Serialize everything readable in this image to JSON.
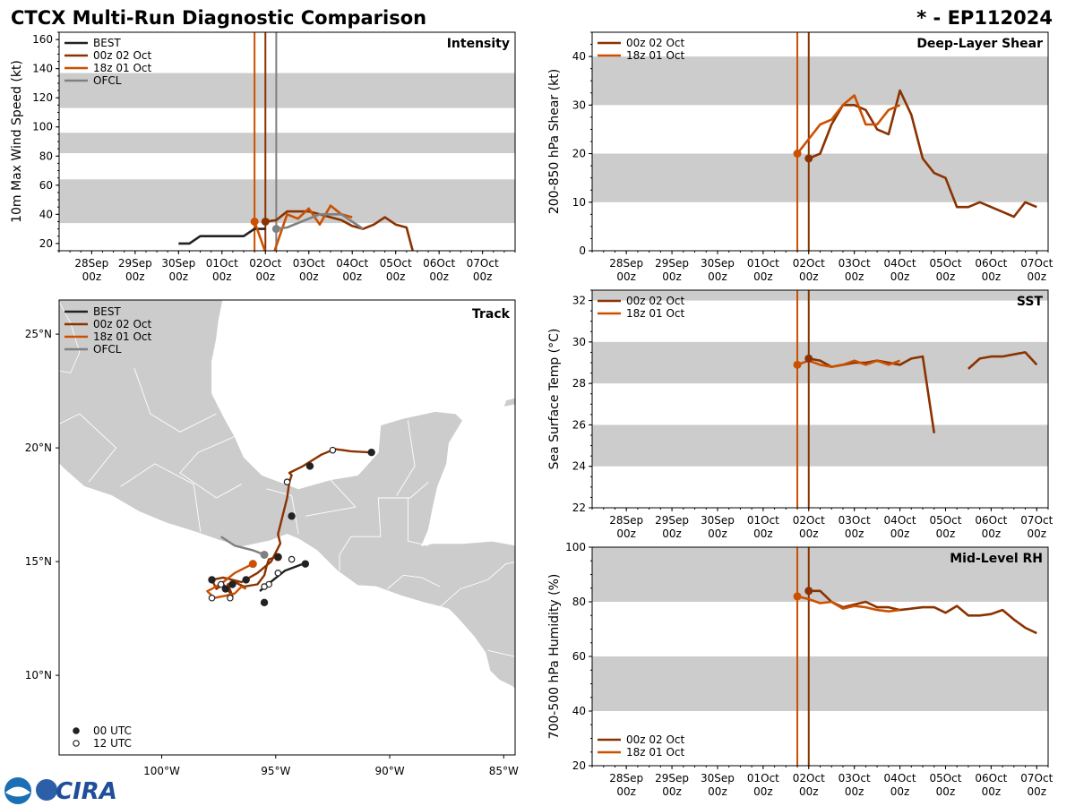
{
  "header": {
    "title": "CTCX Multi-Run Diagnostic Comparison",
    "storm_id": "* - EP112024"
  },
  "colors": {
    "BEST": "#222222",
    "00z 02 Oct": "#8b3200",
    "18z 01 Oct": "#cc5000",
    "OFCL": "#808080",
    "band": "#cccccc"
  },
  "time_ticks": {
    "line1": [
      "28Sep",
      "29Sep",
      "30Sep",
      "01Oct",
      "02Oct",
      "03Oct",
      "04Oct",
      "05Oct",
      "06Oct",
      "07Oct"
    ],
    "line2": [
      "00z",
      "00z",
      "00z",
      "00z",
      "00z",
      "00z",
      "00z",
      "00z",
      "00z",
      "00z"
    ]
  },
  "chart_data": [
    {
      "type": "line",
      "title": "Intensity",
      "ylabel": "10m Max Wind Speed (kt)",
      "xlabel": "",
      "x_unit": "days since 28Sep 00z",
      "xlim": [
        -0.75,
        9.75
      ],
      "ylim": [
        15,
        165
      ],
      "yticks": [
        20,
        40,
        60,
        80,
        100,
        120,
        140,
        160
      ],
      "bands": [
        [
          34,
          64
        ],
        [
          82,
          96
        ],
        [
          113,
          137
        ]
      ],
      "vlines": [
        {
          "x": 3.75,
          "series": "18z 01 Oct"
        },
        {
          "x": 4.0,
          "series": "00z 02 Oct"
        },
        {
          "x": 4.25,
          "series": "OFCL"
        }
      ],
      "legend": [
        "BEST",
        "00z 02 Oct",
        "18z 01 Oct",
        "OFCL"
      ],
      "series": [
        {
          "name": "BEST",
          "x": [
            2.0,
            2.25,
            2.5,
            2.75,
            3.0,
            3.25,
            3.5,
            3.75,
            4.0
          ],
          "y": [
            20,
            20,
            25,
            25,
            25,
            25,
            25,
            30,
            30
          ]
        },
        {
          "name": "00z 02 Oct",
          "x": [
            4.0,
            4.25,
            4.5,
            4.75,
            5.0,
            5.25,
            5.5,
            5.75,
            6.0,
            6.25,
            6.5,
            6.75,
            7.0,
            7.25,
            7.4
          ],
          "y": [
            35,
            36,
            42,
            42,
            42,
            40,
            38,
            36,
            32,
            30,
            33,
            38,
            33,
            31,
            14
          ]
        },
        {
          "name": "18z 01 Oct",
          "x": [
            3.75,
            4.0,
            4.2,
            4.5,
            4.75,
            5.0,
            5.25,
            5.5,
            5.75,
            6.0
          ],
          "y": [
            35,
            14,
            14,
            40,
            37,
            44,
            33,
            46,
            40,
            38
          ]
        },
        {
          "name": "OFCL",
          "x": [
            4.25,
            4.5,
            4.75,
            5.0,
            5.25,
            5.5,
            5.75,
            6.0,
            6.25
          ],
          "y": [
            30,
            31,
            34,
            37,
            40,
            40,
            40,
            35,
            30
          ]
        }
      ],
      "markers": [
        {
          "series": "00z 02 Oct",
          "x": 4.0,
          "y": 35
        },
        {
          "series": "18z 01 Oct",
          "x": 3.75,
          "y": 35
        },
        {
          "series": "OFCL",
          "x": 4.25,
          "y": 30
        }
      ]
    },
    {
      "type": "line",
      "title": "Deep-Layer Shear",
      "ylabel": "200-850 hPa Shear (kt)",
      "xlabel": "",
      "x_unit": "days since 28Sep 00z",
      "xlim": [
        -0.75,
        9.25
      ],
      "ylim": [
        0,
        45
      ],
      "yticks": [
        0,
        10,
        20,
        30,
        40
      ],
      "bands": [
        [
          10,
          20
        ],
        [
          30,
          40
        ]
      ],
      "vlines": [
        {
          "x": 3.75,
          "series": "18z 01 Oct"
        },
        {
          "x": 4.0,
          "series": "00z 02 Oct"
        }
      ],
      "legend": [
        "00z 02 Oct",
        "18z 01 Oct"
      ],
      "series": [
        {
          "name": "00z 02 Oct",
          "x": [
            4.0,
            4.25,
            4.5,
            4.75,
            5.0,
            5.25,
            5.5,
            5.75,
            6.0,
            6.25,
            6.5,
            6.75,
            7.0,
            7.25,
            7.5,
            7.75,
            8.0,
            8.25,
            8.5,
            8.75,
            9.0
          ],
          "y": [
            19,
            20,
            26,
            30,
            30,
            29,
            25,
            24,
            33,
            28,
            19,
            16,
            15,
            9,
            9,
            10,
            9,
            8,
            7,
            10,
            9
          ]
        },
        {
          "name": "18z 01 Oct",
          "x": [
            3.75,
            4.0,
            4.25,
            4.5,
            4.75,
            5.0,
            5.25,
            5.5,
            5.75,
            6.0
          ],
          "y": [
            20,
            23,
            26,
            27,
            30,
            32,
            26,
            26,
            29,
            30
          ]
        }
      ],
      "markers": [
        {
          "series": "00z 02 Oct",
          "x": 4.0,
          "y": 19
        },
        {
          "series": "18z 01 Oct",
          "x": 3.75,
          "y": 20
        }
      ]
    },
    {
      "type": "line",
      "title": "SST",
      "ylabel": "Sea Surface Temp (°C)",
      "xlabel": "",
      "x_unit": "days since 28Sep 00z",
      "xlim": [
        -0.75,
        9.25
      ],
      "ylim": [
        22,
        32.5
      ],
      "yticks": [
        22,
        24,
        26,
        28,
        30,
        32
      ],
      "bands": [
        [
          24,
          26
        ],
        [
          28,
          30
        ],
        [
          32,
          34
        ]
      ],
      "vlines": [
        {
          "x": 3.75,
          "series": "18z 01 Oct"
        },
        {
          "x": 4.0,
          "series": "00z 02 Oct"
        }
      ],
      "legend": [
        "00z 02 Oct",
        "18z 01 Oct"
      ],
      "series": [
        {
          "name": "00z 02 Oct",
          "x": [
            4.0,
            4.25,
            4.5,
            4.75,
            5.0,
            5.25,
            5.5,
            5.75,
            6.0,
            6.25,
            6.5,
            6.75
          ],
          "y": [
            29.2,
            29.1,
            28.8,
            28.9,
            29.0,
            29.0,
            29.1,
            29.0,
            28.9,
            29.2,
            29.3,
            25.6
          ]
        },
        {
          "name": "00z 02 Oct",
          "x": [
            7.5,
            7.75,
            8.0,
            8.25,
            8.5,
            8.75,
            9.0
          ],
          "y": [
            28.7,
            29.2,
            29.3,
            29.3,
            29.4,
            29.5,
            28.9
          ]
        },
        {
          "name": "18z 01 Oct",
          "x": [
            3.75,
            4.0,
            4.25,
            4.5,
            4.75,
            5.0,
            5.25,
            5.5,
            5.75,
            6.0
          ],
          "y": [
            28.9,
            29.1,
            28.9,
            28.8,
            28.9,
            29.1,
            28.9,
            29.1,
            28.9,
            29.1
          ]
        }
      ],
      "markers": [
        {
          "series": "00z 02 Oct",
          "x": 4.0,
          "y": 29.2
        },
        {
          "series": "18z 01 Oct",
          "x": 3.75,
          "y": 28.9
        }
      ]
    },
    {
      "type": "line",
      "title": "Mid-Level RH",
      "ylabel": "700-500 hPa Humidity (%)",
      "xlabel": "",
      "x_unit": "days since 28Sep 00z",
      "xlim": [
        -0.75,
        9.25
      ],
      "ylim": [
        20,
        100
      ],
      "yticks": [
        20,
        40,
        60,
        80,
        100
      ],
      "bands": [
        [
          40,
          60
        ],
        [
          80,
          100
        ]
      ],
      "vlines": [
        {
          "x": 3.75,
          "series": "18z 01 Oct"
        },
        {
          "x": 4.0,
          "series": "00z 02 Oct"
        }
      ],
      "legend": [
        "00z 02 Oct",
        "18z 01 Oct"
      ],
      "series": [
        {
          "name": "00z 02 Oct",
          "x": [
            4.0,
            4.25,
            4.5,
            4.75,
            5.0,
            5.25,
            5.5,
            5.75,
            6.0,
            6.25,
            6.5,
            6.75,
            7.0,
            7.25,
            7.5,
            7.75,
            8.0,
            8.25,
            8.5,
            8.75,
            9.0
          ],
          "y": [
            84,
            84,
            80,
            78,
            79,
            80,
            78,
            78,
            77,
            77.5,
            78,
            78,
            76,
            78.5,
            75,
            75,
            75.5,
            77,
            73.5,
            70.5,
            68.5
          ]
        },
        {
          "name": "18z 01 Oct",
          "x": [
            3.75,
            4.0,
            4.25,
            4.5,
            4.75,
            5.0,
            5.25,
            5.5,
            5.75,
            6.0
          ],
          "y": [
            82,
            81,
            79.5,
            80,
            77.5,
            78.5,
            78,
            77,
            76.5,
            77
          ]
        }
      ],
      "markers": [
        {
          "series": "00z 02 Oct",
          "x": 4.0,
          "y": 84
        },
        {
          "series": "18z 01 Oct",
          "x": 3.75,
          "y": 82
        }
      ]
    },
    {
      "type": "scatter",
      "title": "Track",
      "xlabel": "",
      "ylabel": "",
      "xlim": [
        -104.5,
        -84.5
      ],
      "ylim": [
        6.5,
        26.5
      ],
      "xticks": [
        -100,
        -95,
        -90,
        -85
      ],
      "xtick_labels": [
        "100°W",
        "95°W",
        "90°W",
        "85°W"
      ],
      "yticks": [
        10,
        15,
        20,
        25
      ],
      "ytick_labels": [
        "10°N",
        "15°N",
        "20°N",
        "25°N"
      ],
      "legend": [
        "BEST",
        "00z 02 Oct",
        "18z 01 Oct",
        "OFCL"
      ],
      "marker_legend": [
        "00 UTC",
        "12 UTC"
      ],
      "series": [
        {
          "name": "BEST",
          "lon": [
            -95.7,
            -95.1,
            -94.6,
            -93.8
          ],
          "lat": [
            13.7,
            14.2,
            14.6,
            14.9
          ]
        },
        {
          "name": "00z 02 Oct",
          "lon": [
            -95.0,
            -95.3,
            -95.4,
            -95.5,
            -95.8,
            -96.4,
            -96.8,
            -97.1,
            -96.9,
            -97.3,
            -97.6,
            -97.8,
            -97.3,
            -96.5,
            -95.8,
            -95.2,
            -94.8,
            -94.9,
            -94.7,
            -94.5,
            -94.4,
            -94.3,
            -94.4,
            -93.8,
            -93.0,
            -92.4,
            -91.7,
            -90.8
          ],
          "lat": [
            15.2,
            15.1,
            14.8,
            14.4,
            14.0,
            13.9,
            14.1,
            14.0,
            13.5,
            14.0,
            13.8,
            14.2,
            14.3,
            14.1,
            14.5,
            15.0,
            15.8,
            16.2,
            17.0,
            17.8,
            18.5,
            18.8,
            18.9,
            19.2,
            19.7,
            19.95,
            19.85,
            19.8
          ]
        },
        {
          "name": "18z 01 Oct",
          "lon": [
            -96.0,
            -96.8,
            -97.3,
            -97.8,
            -98.0,
            -97.7,
            -97.2,
            -96.8,
            -96.5,
            -96.3
          ],
          "lat": [
            14.9,
            14.5,
            14.1,
            13.8,
            13.7,
            13.4,
            13.5,
            13.6,
            13.9,
            13.8
          ]
        },
        {
          "name": "OFCL",
          "lon": [
            -95.5,
            -96.0,
            -96.8,
            -97.4
          ],
          "lat": [
            15.3,
            15.5,
            15.7,
            16.1
          ]
        }
      ],
      "points_00utc": [
        {
          "lon": -95.5,
          "lat": 13.2
        },
        {
          "lon": -94.9,
          "lat": 15.2
        },
        {
          "lon": -93.7,
          "lat": 14.9
        },
        {
          "lon": -96.3,
          "lat": 14.2
        },
        {
          "lon": -96.9,
          "lat": 14.0
        },
        {
          "lon": -97.8,
          "lat": 14.2
        },
        {
          "lon": -97.2,
          "lat": 13.8
        },
        {
          "lon": -94.3,
          "lat": 17.0
        },
        {
          "lon": -93.5,
          "lat": 19.2
        },
        {
          "lon": -90.8,
          "lat": 19.8
        }
      ],
      "points_12utc": [
        {
          "lon": -95.3,
          "lat": 14.0
        },
        {
          "lon": -95.5,
          "lat": 13.9
        },
        {
          "lon": -94.9,
          "lat": 14.5
        },
        {
          "lon": -94.3,
          "lat": 15.1
        },
        {
          "lon": -94.5,
          "lat": 18.5
        },
        {
          "lon": -92.5,
          "lat": 19.9
        },
        {
          "lon": -97.4,
          "lat": 14.0
        },
        {
          "lon": -97.8,
          "lat": 13.4
        },
        {
          "lon": -97.0,
          "lat": 13.4
        }
      ],
      "current_positions": [
        {
          "series": "00z 02 Oct",
          "lon": -94.9,
          "lat": 15.2
        },
        {
          "series": "18z 01 Oct",
          "lon": -96.0,
          "lat": 14.9
        },
        {
          "series": "OFCL",
          "lon": -95.5,
          "lat": 15.3
        }
      ]
    }
  ],
  "logo": {
    "label": "CIRA"
  }
}
